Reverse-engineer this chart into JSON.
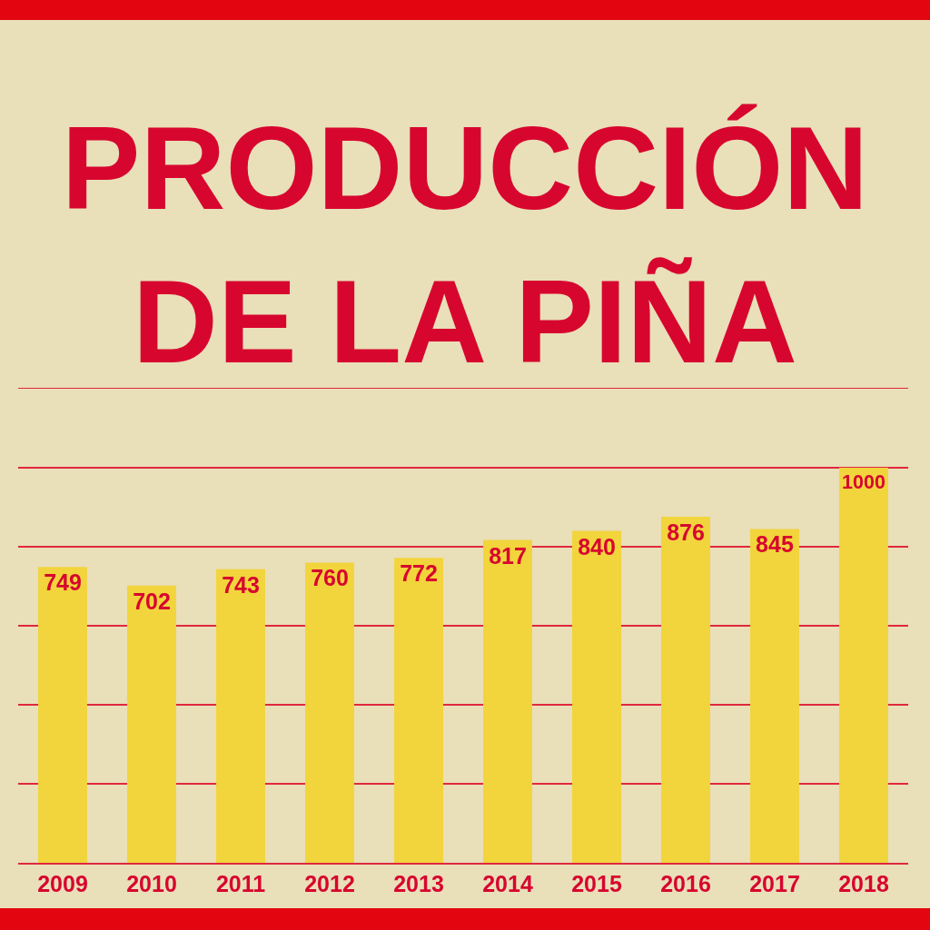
{
  "chart_data": {
    "type": "bar",
    "title": "PRODUCCIÓN\nDE LA PIÑA",
    "categories": [
      "2009",
      "2010",
      "2011",
      "2012",
      "2013",
      "2014",
      "2015",
      "2016",
      "2017",
      "2018"
    ],
    "values": [
      749,
      702,
      743,
      760,
      772,
      817,
      840,
      876,
      845,
      1000
    ],
    "color": "#f2d43c",
    "ylim": [
      0,
      1200
    ],
    "yticks": [
      {
        "value": 0,
        "label": null
      },
      {
        "value": 200,
        "label": null
      },
      {
        "value": 400,
        "label": null
      },
      {
        "value": 600,
        "label": null
      },
      {
        "value": 800,
        "label": null
      },
      {
        "value": 1000,
        "label": null
      },
      {
        "value": 1200,
        "label": null
      }
    ],
    "grid": "y",
    "tick_labels": "x",
    "data_labels": true
  }
}
